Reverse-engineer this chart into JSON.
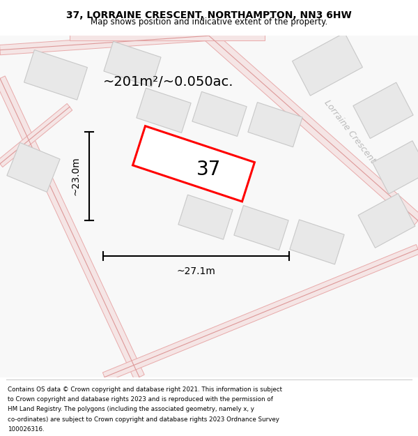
{
  "title": "37, LORRAINE CRESCENT, NORTHAMPTON, NN3 6HW",
  "subtitle": "Map shows position and indicative extent of the property.",
  "area_label": "~201m²/~0.050ac.",
  "number_label": "37",
  "width_label": "~27.1m",
  "height_label": "~23.0m",
  "street_label": "Lorraine Crescent",
  "footer_lines": [
    "Contains OS data © Crown copyright and database right 2021. This information is subject",
    "to Crown copyright and database rights 2023 and is reproduced with the permission of",
    "HM Land Registry. The polygons (including the associated geometry, namely x, y",
    "co-ordinates) are subject to Crown copyright and database rights 2023 Ordnance Survey",
    "100026316."
  ],
  "map_bg": "#ffffff",
  "building_fill": "#e8e8e8",
  "building_edge": "#c8c8c8",
  "road_fill": "#f5e8e8",
  "road_edge": "#e8b0b0",
  "plot_color": "#ff0000",
  "street_color": "#bbbbbb",
  "dim_color": "#000000"
}
